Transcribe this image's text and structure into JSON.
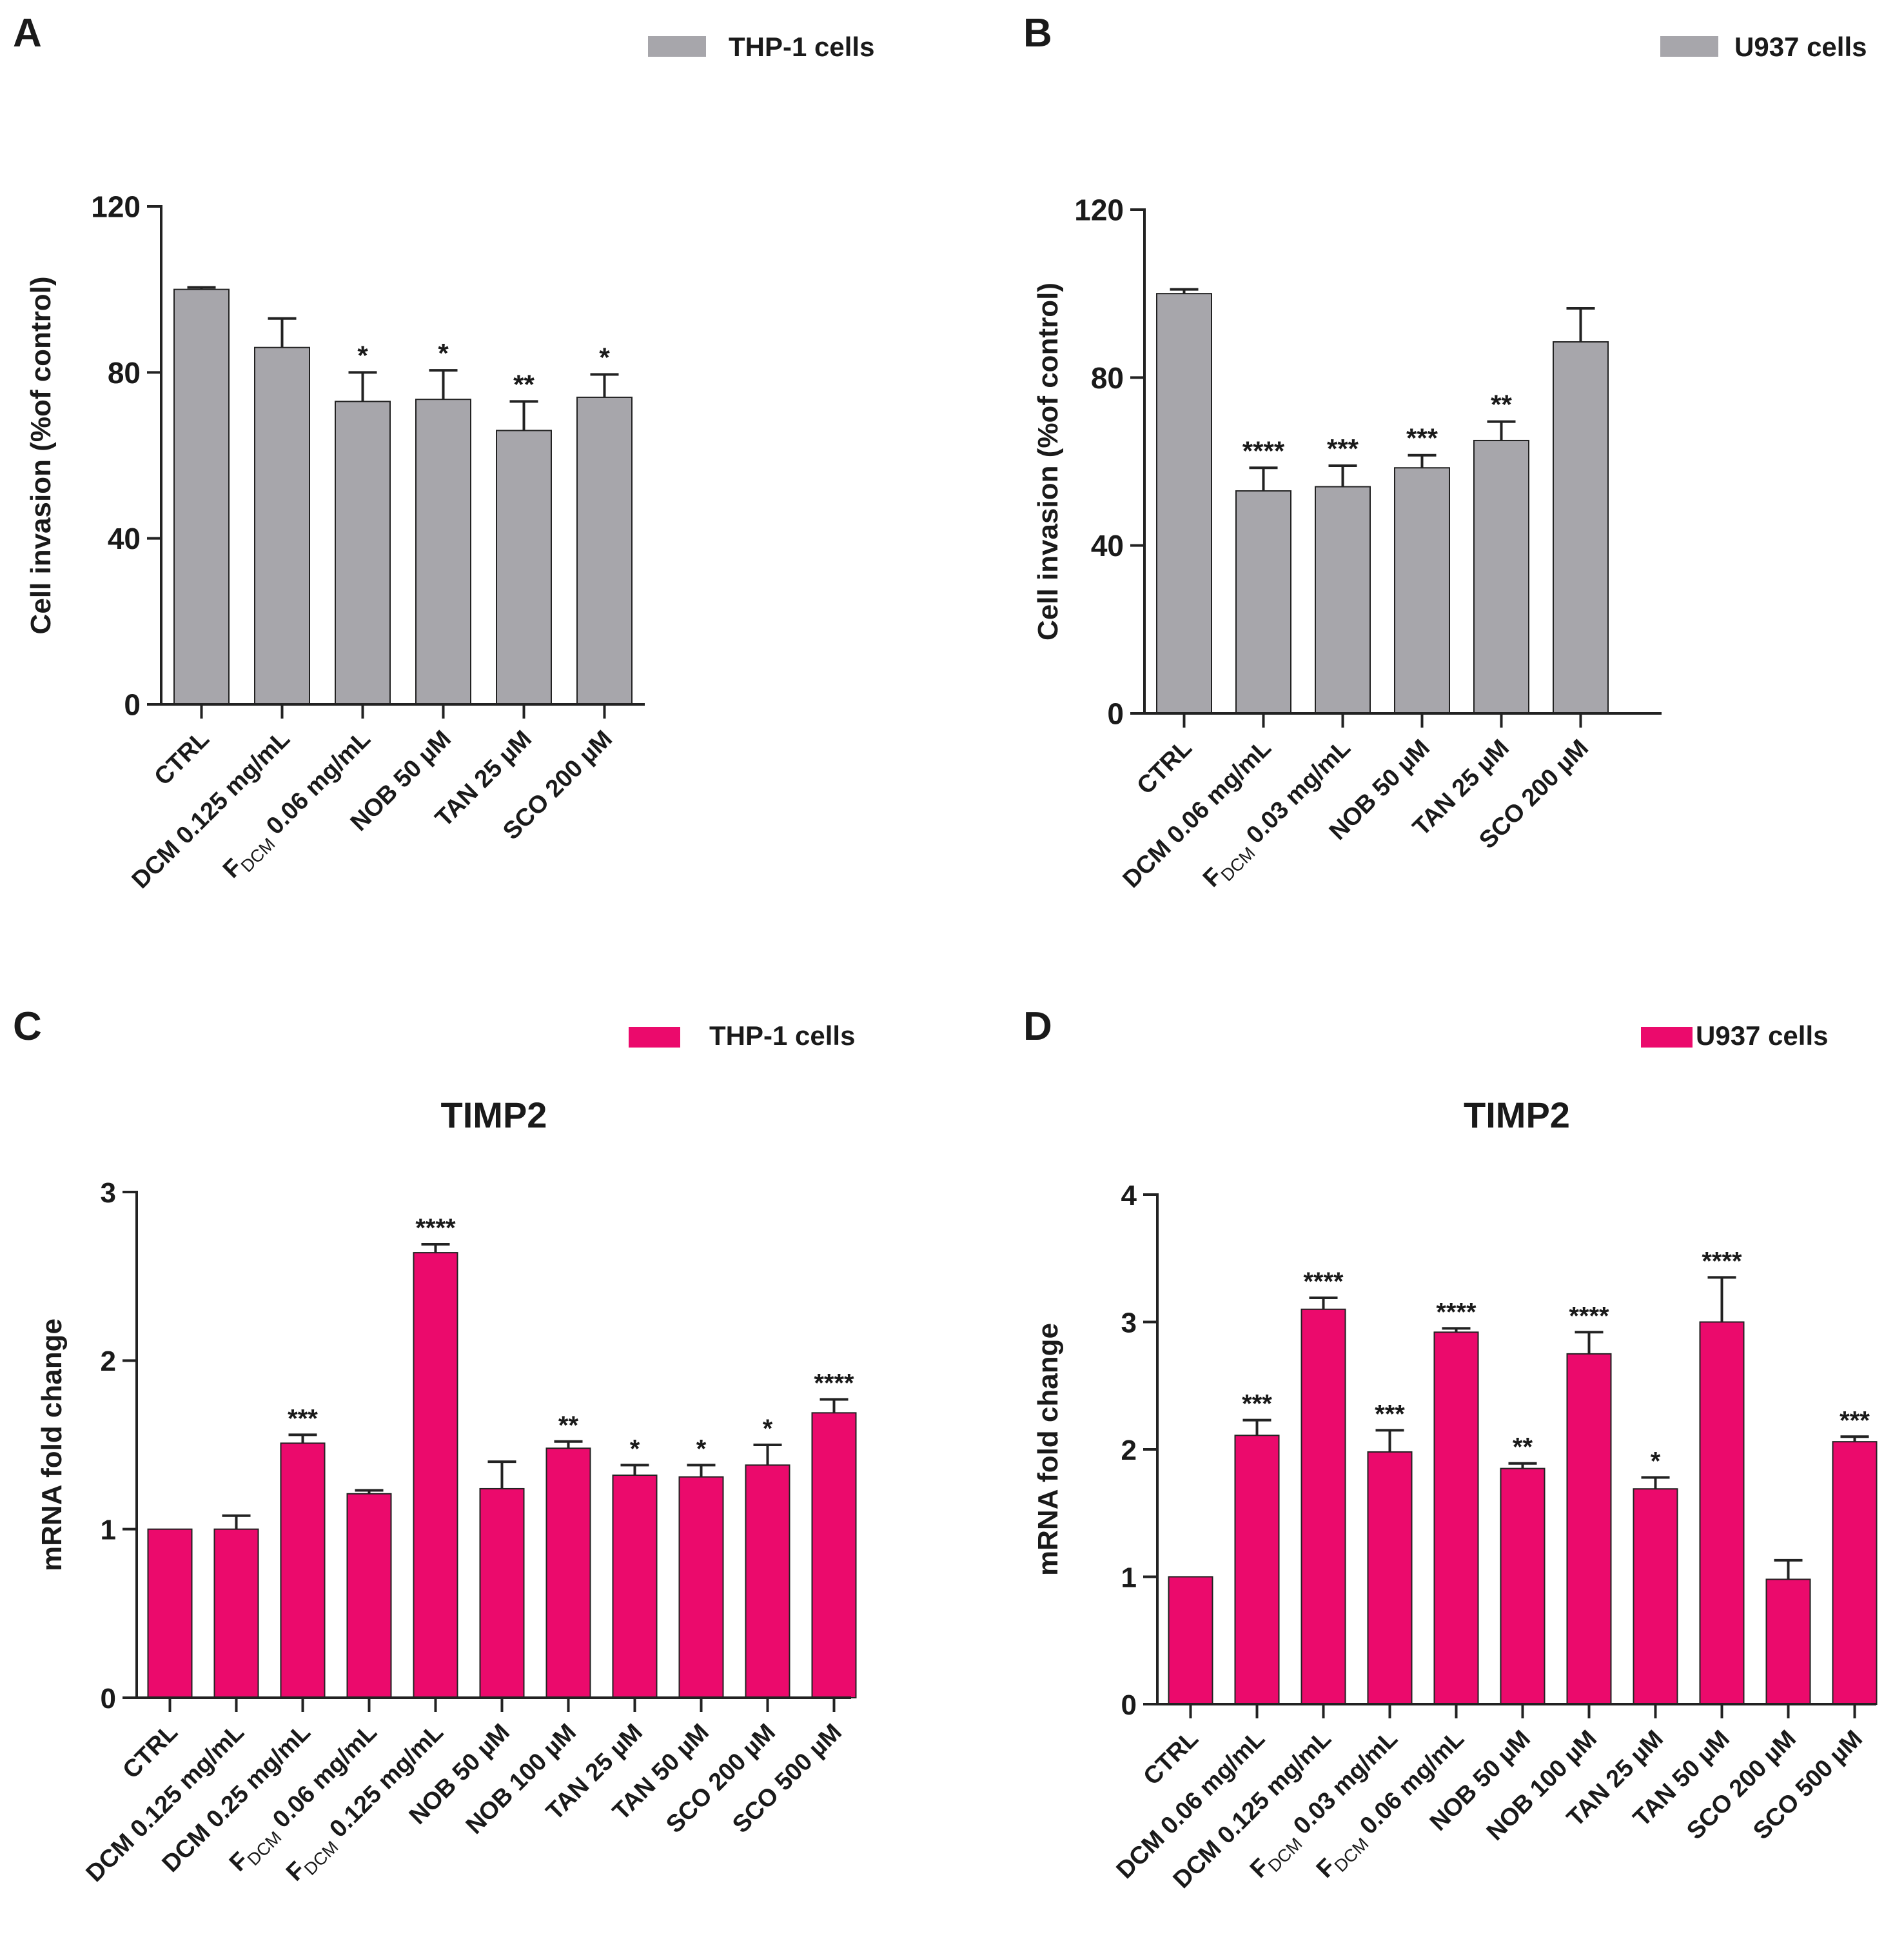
{
  "panels": [
    {
      "letter": "A",
      "title": "",
      "legend": "THP-1 cells",
      "color": "#a7a6ab",
      "ylabel": "Cell invasion (%of control)",
      "ylim": [
        0,
        120
      ],
      "yticks": [
        "0",
        "40",
        "80",
        "120"
      ],
      "chart_data": {
        "type": "bar",
        "title": "",
        "xlabel": "",
        "ylabel": "Cell invasion (%of control)",
        "ylim": [
          0,
          120
        ],
        "series_name": "THP-1 cells",
        "categories": [
          {
            "main": "CTRL"
          },
          {
            "main": "DCM 0.125 mg/mL"
          },
          {
            "main": "F",
            "sub": "DCM",
            "rest": " 0.06 mg/mL"
          },
          {
            "main": "NOB 50 µM"
          },
          {
            "main": "TAN 25 µM"
          },
          {
            "main": "SCO 200 µM"
          }
        ],
        "values": [
          100,
          86,
          73,
          73.5,
          66,
          74
        ],
        "errors": [
          0.5,
          7,
          7,
          7,
          7,
          5.5
        ],
        "significance": [
          "",
          "",
          "*",
          "*",
          "**",
          "*"
        ]
      }
    },
    {
      "letter": "B",
      "title": "",
      "legend": "U937 cells",
      "color": "#a7a6ab",
      "ylabel": "Cell invasion (%of control)",
      "ylim": [
        0,
        120
      ],
      "yticks": [
        "0",
        "40",
        "80",
        "120"
      ],
      "chart_data": {
        "type": "bar",
        "title": "",
        "xlabel": "",
        "ylabel": "Cell invasion (%of control)",
        "ylim": [
          0,
          120
        ],
        "series_name": "U937 cells",
        "categories": [
          {
            "main": "CTRL"
          },
          {
            "main": "DCM 0.06 mg/mL"
          },
          {
            "main": "F",
            "sub": "DCM",
            "rest": " 0.03 mg/mL"
          },
          {
            "main": "NOB 50 µM"
          },
          {
            "main": "TAN 25 µM"
          },
          {
            "main": "SCO 200 µM"
          }
        ],
        "values": [
          100,
          53,
          54,
          58.5,
          65,
          88.5
        ],
        "errors": [
          1,
          5.5,
          5,
          3,
          4.5,
          8
        ],
        "significance": [
          "",
          "****",
          "***",
          "***",
          "**",
          ""
        ]
      }
    },
    {
      "letter": "C",
      "title": "TIMP2",
      "legend": "THP-1 cells",
      "color": "#eb0a6c",
      "ylabel": "mRNA fold change",
      "ylim": [
        0,
        3
      ],
      "yticks": [
        "0",
        "1",
        "2",
        "3"
      ],
      "chart_data": {
        "type": "bar",
        "title": "TIMP2",
        "xlabel": "",
        "ylabel": "mRNA fold change",
        "ylim": [
          0,
          3
        ],
        "series_name": "THP-1 cells",
        "categories": [
          {
            "main": "CTRL"
          },
          {
            "main": "DCM 0.125 mg/mL"
          },
          {
            "main": "DCM 0.25 mg/mL"
          },
          {
            "main": "F",
            "sub": "DCM",
            "rest": " 0.06 mg/mL"
          },
          {
            "main": "F",
            "sub": "DCM",
            "rest": " 0.125 mg/mL"
          },
          {
            "main": "NOB 50 µM"
          },
          {
            "main": "NOB 100 µM"
          },
          {
            "main": "TAN 25 µM"
          },
          {
            "main": "TAN 50 µM"
          },
          {
            "main": "SCO 200 µM"
          },
          {
            "main": "SCO 500 µM"
          }
        ],
        "values": [
          1.0,
          1.0,
          1.51,
          1.21,
          2.64,
          1.24,
          1.48,
          1.32,
          1.31,
          1.38,
          1.69
        ],
        "errors": [
          0.0,
          0.08,
          0.05,
          0.02,
          0.05,
          0.16,
          0.04,
          0.06,
          0.07,
          0.12,
          0.08
        ],
        "significance": [
          "",
          "",
          "***",
          "",
          "****",
          "",
          "**",
          "*",
          "*",
          "*",
          "****"
        ]
      }
    },
    {
      "letter": "D",
      "title": "TIMP2",
      "legend": "U937 cells",
      "color": "#eb0a6c",
      "ylabel": "mRNA fold change",
      "ylim": [
        0,
        4
      ],
      "yticks": [
        "0",
        "1",
        "2",
        "3",
        "4"
      ],
      "chart_data": {
        "type": "bar",
        "title": "TIMP2",
        "xlabel": "",
        "ylabel": "mRNA fold change",
        "ylim": [
          0,
          4
        ],
        "series_name": "U937 cells",
        "categories": [
          {
            "main": "CTRL"
          },
          {
            "main": "DCM 0.06 mg/mL"
          },
          {
            "main": "DCM 0.125 mg/mL"
          },
          {
            "main": "F",
            "sub": "DCM",
            "rest": " 0.03 mg/mL"
          },
          {
            "main": "F",
            "sub": "DCM",
            "rest": " 0.06 mg/mL"
          },
          {
            "main": "NOB 50 µM"
          },
          {
            "main": "NOB 100 µM"
          },
          {
            "main": "TAN 25 µM"
          },
          {
            "main": "TAN 50 µM"
          },
          {
            "main": "SCO 200 µM"
          },
          {
            "main": "SCO 500 µM"
          }
        ],
        "values": [
          1.0,
          2.11,
          3.1,
          1.98,
          2.92,
          1.85,
          2.75,
          1.69,
          3.0,
          0.98,
          2.06
        ],
        "errors": [
          0.0,
          0.12,
          0.09,
          0.17,
          0.03,
          0.04,
          0.17,
          0.09,
          0.35,
          0.15,
          0.04
        ],
        "significance": [
          "",
          "***",
          "****",
          "***",
          "****",
          "**",
          "****",
          "*",
          "****",
          "",
          "***"
        ]
      }
    }
  ]
}
